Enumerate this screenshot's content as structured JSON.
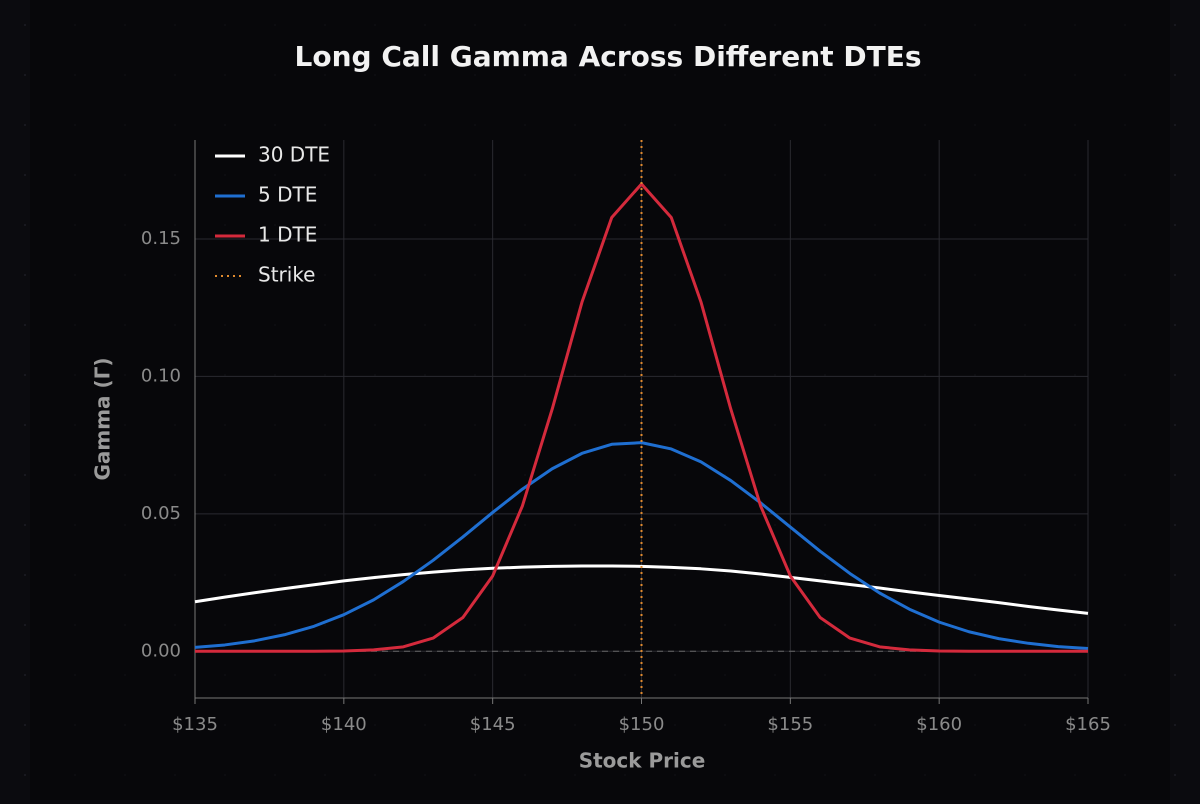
{
  "chart_data": {
    "type": "line",
    "title": "Long Call Gamma Across Different DTEs",
    "xlabel": "Stock Price",
    "ylabel": "Gamma (Γ)",
    "x": [
      135,
      136,
      137,
      138,
      139,
      140,
      141,
      142,
      143,
      144,
      145,
      146,
      147,
      148,
      149,
      150,
      151,
      152,
      153,
      154,
      155,
      156,
      157,
      158,
      159,
      160,
      161,
      162,
      163,
      164,
      165
    ],
    "series": [
      {
        "name": "30 DTE",
        "color": "#ffffff",
        "values": [
          0.018,
          0.0197,
          0.0213,
          0.0228,
          0.0242,
          0.0256,
          0.0268,
          0.0279,
          0.0288,
          0.0296,
          0.0302,
          0.0306,
          0.0309,
          0.031,
          0.031,
          0.0309,
          0.0305,
          0.03,
          0.0292,
          0.0281,
          0.0269,
          0.0256,
          0.0243,
          0.023,
          0.0216,
          0.0203,
          0.019,
          0.0177,
          0.0163,
          0.015,
          0.0138
        ]
      },
      {
        "name": "5 DTE",
        "color": "#1f6fd1",
        "values": [
          0.0014,
          0.0023,
          0.0038,
          0.006,
          0.0091,
          0.0133,
          0.0187,
          0.0254,
          0.0331,
          0.0416,
          0.0505,
          0.059,
          0.0664,
          0.072,
          0.0753,
          0.0759,
          0.0736,
          0.0689,
          0.0621,
          0.054,
          0.0452,
          0.0364,
          0.0283,
          0.0212,
          0.0153,
          0.0106,
          0.0071,
          0.0046,
          0.0029,
          0.0017,
          0.001
        ]
      },
      {
        "name": "1 DTE",
        "color": "#d42a3c",
        "values": [
          0,
          0,
          0,
          0,
          0,
          0.0001,
          0.0005,
          0.0016,
          0.0048,
          0.0123,
          0.0274,
          0.0529,
          0.0881,
          0.127,
          0.1578,
          0.17,
          0.1578,
          0.127,
          0.0881,
          0.0529,
          0.0274,
          0.0123,
          0.0048,
          0.0016,
          0.0005,
          0.0001,
          0,
          0,
          0,
          0,
          0
        ]
      }
    ],
    "strike": {
      "name": "Strike",
      "x": 150,
      "color": "#e08a2e"
    },
    "xlim": [
      135,
      165
    ],
    "ylim": [
      -0.017,
      0.186
    ],
    "xticks": [
      {
        "value": 135,
        "label": "$135"
      },
      {
        "value": 140,
        "label": "$140"
      },
      {
        "value": 145,
        "label": "$145"
      },
      {
        "value": 150,
        "label": "$150"
      },
      {
        "value": 155,
        "label": "$155"
      },
      {
        "value": 160,
        "label": "$160"
      },
      {
        "value": 165,
        "label": "$165"
      }
    ],
    "yticks": [
      {
        "value": 0,
        "label": "0.00"
      },
      {
        "value": 0.05,
        "label": "0.05"
      },
      {
        "value": 0.1,
        "label": "0.10"
      },
      {
        "value": 0.15,
        "label": "0.15"
      }
    ],
    "grid": true,
    "legend": "upper left"
  }
}
